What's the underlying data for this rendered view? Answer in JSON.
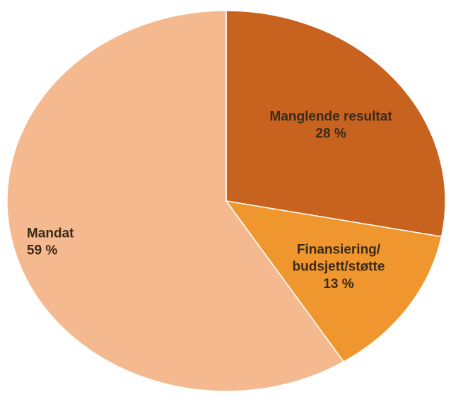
{
  "chart_data": {
    "type": "pie",
    "categories": [
      "Manglende resultat",
      "Finansiering/budsjett/støtte",
      "Mandat"
    ],
    "values": [
      28,
      13,
      59
    ],
    "value_labels": [
      "28 %",
      "13 %",
      "59 %"
    ],
    "colors": [
      "#c8621f",
      "#f0962e",
      "#f5b98f"
    ]
  }
}
